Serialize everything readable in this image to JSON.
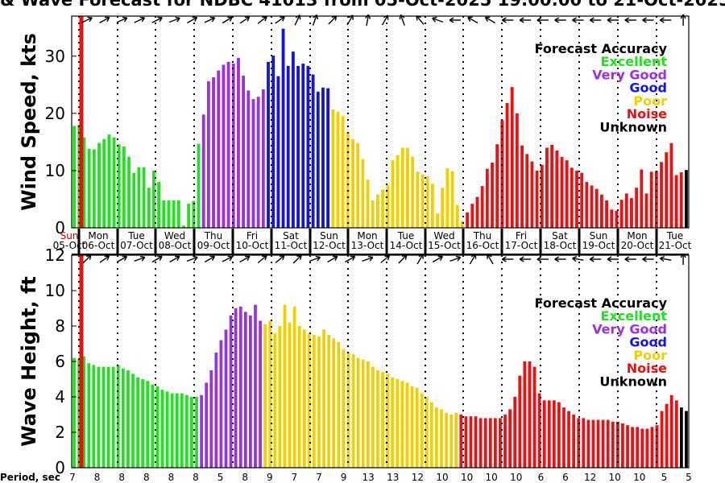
{
  "title": "& Wave Forecast for NDBC 41013 from 05-Oct-2025 19:00:00 to 21-Oct-2025",
  "colors": {
    "Excellent": "#22e022",
    "Very Good": "#9b30e0",
    "Good": "#1414e0",
    "Poor": "#f0d000",
    "Noise": "#ee1010",
    "Unknown": "#000000",
    "transition_excellent_verygood": "#607890",
    "transition_good_poor": "#907860",
    "transition_poor_noise": "#ee8a10",
    "now_line": "#ee1010"
  },
  "day_labels": [
    {
      "day": "Sun",
      "date": "05-Oct"
    },
    {
      "day": "Mon",
      "date": "06-Oct"
    },
    {
      "day": "Tue",
      "date": "07-Oct"
    },
    {
      "day": "Wed",
      "date": "08-Oct"
    },
    {
      "day": "Thu",
      "date": "09-Oct"
    },
    {
      "day": "Fri",
      "date": "10-Oct"
    },
    {
      "day": "Sat",
      "date": "11-Oct"
    },
    {
      "day": "Sun",
      "date": "12-Oct"
    },
    {
      "day": "Mon",
      "date": "13-Oct"
    },
    {
      "day": "Tue",
      "date": "14-Oct"
    },
    {
      "day": "Wed",
      "date": "15-Oct"
    },
    {
      "day": "Thu",
      "date": "16-Oct"
    },
    {
      "day": "Fri",
      "date": "17-Oct"
    },
    {
      "day": "Sat",
      "date": "18-Oct"
    },
    {
      "day": "Sun",
      "date": "19-Oct"
    },
    {
      "day": "Mon",
      "date": "20-Oct"
    },
    {
      "day": "Tue",
      "date": "21-Oct"
    }
  ],
  "period_label": "Period, sec",
  "periods": [
    "7",
    "8",
    "8",
    "8",
    "8",
    "8",
    "5",
    "8",
    "9",
    "7",
    "7",
    "9",
    "13",
    "13",
    "12",
    "10",
    "10",
    "10",
    "10",
    "6",
    "6",
    "12",
    "10",
    "10",
    "5",
    "5"
  ],
  "chart_data": [
    {
      "type": "bar",
      "ylabel": "Wind Speed, kts",
      "ylim": [
        0,
        37
      ],
      "yticks": [
        0,
        10,
        20,
        30
      ],
      "grid": false,
      "legend_title": "Forecast Accuracy",
      "legend": [
        "Excellent",
        "Very Good",
        "Good",
        "Poor",
        "Noise",
        "Unknown"
      ],
      "legend_position": "top-right",
      "values": [
        17.8,
        18,
        15.8,
        13.8,
        13.7,
        14.8,
        15.5,
        16.3,
        15.8,
        14.6,
        14.2,
        12.4,
        9.6,
        10.6,
        10.6,
        7,
        10,
        8,
        4.8,
        4.8,
        4.8,
        4.8,
        0.4,
        4.2,
        4.7,
        14.7,
        19.8,
        25.6,
        26.3,
        27.5,
        28.5,
        29,
        28.7,
        29.7,
        26.6,
        24,
        22.5,
        22.9,
        24.2,
        29,
        30.1,
        26.5,
        34.8,
        28.3,
        30.8,
        28.3,
        28.7,
        28.3,
        26.8,
        23.8,
        24.5,
        24.4,
        20.7,
        20.3,
        19.5,
        16.6,
        15.5,
        14.8,
        12,
        8.4,
        4.8,
        5.8,
        6.7,
        7.5,
        11.8,
        12.7,
        14,
        14,
        12.4,
        9.8,
        9.3,
        9,
        7.7,
        2.5,
        7,
        10.4,
        9.9,
        4,
        1.2,
        2.7,
        4.2,
        5.4,
        7.3,
        10.3,
        11.4,
        14.6,
        18.8,
        21.8,
        24.6,
        20,
        14.4,
        12.9,
        11.6,
        10,
        11,
        14,
        14.5,
        13.5,
        12.4,
        11.8,
        10.5,
        10,
        9.6,
        8,
        7.4,
        6.8,
        5.8,
        4.8,
        3.2,
        3,
        4.9,
        6,
        5.2,
        7,
        10.2,
        6,
        9.8,
        9.9,
        11.5,
        13.2,
        14.8,
        9.2,
        9.7,
        10.1
      ],
      "accuracy": [
        "Excellent",
        "Excellent",
        "Excellent",
        "Excellent",
        "Excellent",
        "Excellent",
        "Excellent",
        "Excellent",
        "Excellent",
        "Excellent",
        "Excellent",
        "Excellent",
        "Excellent",
        "Excellent",
        "Excellent",
        "Excellent",
        "Excellent",
        "Excellent",
        "Excellent",
        "Excellent",
        "Excellent",
        "Excellent",
        "Excellent",
        "Excellent",
        "Excellent",
        "Excellent",
        "Very Good",
        "Very Good",
        "Very Good",
        "Very Good",
        "Very Good",
        "Very Good",
        "Very Good",
        "Very Good",
        "Very Good",
        "Very Good",
        "Very Good",
        "Very Good",
        "Very Good",
        "Good",
        "Good",
        "Good",
        "Good",
        "Good",
        "Good",
        "Good",
        "Good",
        "Good",
        "Good",
        "Good",
        "Good",
        "Good",
        "Poor",
        "Poor",
        "Poor",
        "Poor",
        "Poor",
        "Poor",
        "Poor",
        "Poor",
        "Poor",
        "Poor",
        "Poor",
        "Poor",
        "Poor",
        "Poor",
        "Poor",
        "Poor",
        "Poor",
        "Poor",
        "Poor",
        "Poor",
        "Poor",
        "Poor",
        "Poor",
        "Poor",
        "Poor",
        "Poor",
        "Poor",
        "Noise",
        "Noise",
        "Noise",
        "Noise",
        "Noise",
        "Noise",
        "Noise",
        "Noise",
        "Noise",
        "Noise",
        "Noise",
        "Noise",
        "Noise",
        "Noise",
        "Noise",
        "Noise",
        "Noise",
        "Noise",
        "Noise",
        "Noise",
        "Noise",
        "Noise",
        "Noise",
        "Noise",
        "Noise",
        "Noise",
        "Noise",
        "Noise",
        "Noise",
        "Noise",
        "Noise",
        "Noise",
        "Noise",
        "Noise",
        "Noise",
        "Noise",
        "Noise",
        "Noise",
        "Noise",
        "Noise",
        "Noise",
        "Noise",
        "Noise",
        "Noise"
      ]
    },
    {
      "type": "bar",
      "ylabel": "Wave Height, ft",
      "ylim": [
        0,
        12
      ],
      "yticks": [
        0,
        2,
        4,
        6,
        8,
        10,
        12
      ],
      "grid": false,
      "legend_title": "Forecast Accuracy",
      "legend": [
        "Excellent",
        "Very Good",
        "Good",
        "Poor",
        "Noise",
        "Unknown"
      ],
      "legend_position": "top-right",
      "values": [
        6.2,
        6.1,
        6.3,
        5.9,
        5.8,
        5.7,
        5.7,
        5.7,
        5.7,
        5.8,
        5.6,
        5.5,
        5.3,
        5.1,
        5,
        4.9,
        4.7,
        4.6,
        4.4,
        4.3,
        4.2,
        4.2,
        4.2,
        4.1,
        4,
        4,
        4.1,
        4.8,
        5.5,
        6.5,
        7.2,
        7.8,
        8.6,
        9,
        9.1,
        8.8,
        8.6,
        9.2,
        8.3,
        8.1,
        8.3,
        7.6,
        8,
        9.2,
        8.2,
        9.1,
        8,
        7.8,
        7.6,
        7.5,
        7.4,
        7.8,
        7.5,
        7.3,
        7.1,
        6.7,
        6.5,
        6.4,
        6.2,
        6.1,
        6,
        5.7,
        5.5,
        5.4,
        5.3,
        5.1,
        5,
        4.9,
        4.8,
        4.6,
        4.5,
        4.2,
        4,
        3.7,
        3.4,
        3.3,
        3.1,
        3,
        3.1,
        3,
        2.9,
        2.9,
        2.9,
        2.8,
        2.8,
        2.8,
        2.8,
        2.8,
        3,
        3.3,
        4,
        5.2,
        6,
        6,
        5.7,
        4.2,
        3.8,
        3.8,
        3.8,
        3.7,
        3.4,
        3.2,
        3,
        2.8,
        2.8,
        2.7,
        2.7,
        2.7,
        2.7,
        2.7,
        2.6,
        2.6,
        2.5,
        2.4,
        2.3,
        2.3,
        2.2,
        2.2,
        2.3,
        2.4,
        3.2,
        3.6,
        4.1,
        3.8,
        3.4,
        3.2
      ],
      "accuracy": [
        "Excellent",
        "Excellent",
        "Excellent",
        "Excellent",
        "Excellent",
        "Excellent",
        "Excellent",
        "Excellent",
        "Excellent",
        "Excellent",
        "Excellent",
        "Excellent",
        "Excellent",
        "Excellent",
        "Excellent",
        "Excellent",
        "Excellent",
        "Excellent",
        "Excellent",
        "Excellent",
        "Excellent",
        "Excellent",
        "Excellent",
        "Excellent",
        "Excellent",
        "Excellent",
        "Very Good",
        "Very Good",
        "Very Good",
        "Very Good",
        "Very Good",
        "Very Good",
        "Very Good",
        "Very Good",
        "Very Good",
        "Very Good",
        "Very Good",
        "Very Good",
        "Very Good",
        "Poor",
        "Poor",
        "Poor",
        "Poor",
        "Poor",
        "Poor",
        "Poor",
        "Poor",
        "Poor",
        "Poor",
        "Poor",
        "Poor",
        "Poor",
        "Poor",
        "Poor",
        "Poor",
        "Poor",
        "Poor",
        "Poor",
        "Poor",
        "Poor",
        "Poor",
        "Poor",
        "Poor",
        "Poor",
        "Poor",
        "Poor",
        "Poor",
        "Poor",
        "Poor",
        "Poor",
        "Poor",
        "Poor",
        "Poor",
        "Poor",
        "Poor",
        "Poor",
        "Poor",
        "Poor",
        "Poor",
        "Noise",
        "Noise",
        "Noise",
        "Noise",
        "Noise",
        "Noise",
        "Noise",
        "Noise",
        "Noise",
        "Noise",
        "Noise",
        "Noise",
        "Noise",
        "Noise",
        "Noise",
        "Noise",
        "Noise",
        "Noise",
        "Noise",
        "Noise",
        "Noise",
        "Noise",
        "Noise",
        "Noise",
        "Noise",
        "Noise",
        "Noise",
        "Noise",
        "Noise",
        "Noise",
        "Noise",
        "Noise",
        "Noise",
        "Noise",
        "Noise",
        "Noise",
        "Noise",
        "Noise",
        "Noise",
        "Noise",
        "Noise",
        "Noise",
        "Noise",
        "Noise",
        "Noise"
      ]
    }
  ]
}
